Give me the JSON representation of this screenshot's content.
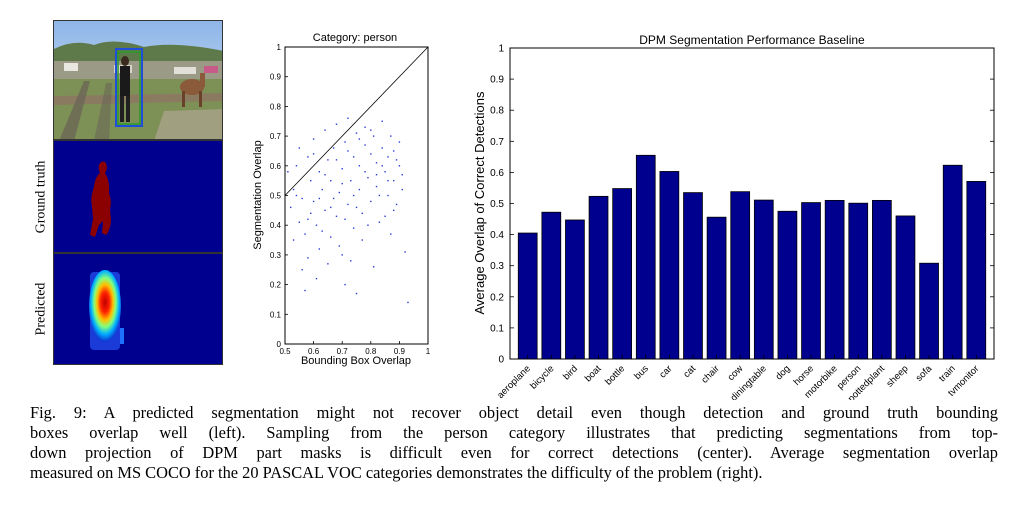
{
  "left_panel": {
    "row_labels": [
      "Ground truth",
      "Predicted"
    ]
  },
  "colors": {
    "bar": "#00008f",
    "bar_edge": "#000000",
    "scatter_point": "#2b3bd6",
    "mask_background": "#00008f",
    "mask_object": "#8b0000"
  },
  "chart_data": [
    {
      "type": "scatter",
      "title": "Category: person",
      "xlabel": "Bounding Box Overlap",
      "ylabel": "Segmentation Overlap",
      "xlim": [
        0.5,
        1
      ],
      "ylim": [
        0,
        1
      ],
      "xticks": [
        "0.5",
        "0.6",
        "0.7",
        "0.8",
        "0.9",
        "1"
      ],
      "yticks": [
        "0",
        "0.1",
        "0.2",
        "0.3",
        "0.4",
        "0.5",
        "0.6",
        "0.7",
        "0.8",
        "0.9",
        "1"
      ],
      "reference_line": {
        "from": [
          0.5,
          0.5
        ],
        "to": [
          1,
          1
        ]
      },
      "points": [
        [
          0.51,
          0.58
        ],
        [
          0.52,
          0.46
        ],
        [
          0.53,
          0.52
        ],
        [
          0.54,
          0.6
        ],
        [
          0.55,
          0.41
        ],
        [
          0.55,
          0.66
        ],
        [
          0.56,
          0.49
        ],
        [
          0.57,
          0.37
        ],
        [
          0.58,
          0.63
        ],
        [
          0.58,
          0.29
        ],
        [
          0.59,
          0.55
        ],
        [
          0.6,
          0.48
        ],
        [
          0.6,
          0.69
        ],
        [
          0.61,
          0.4
        ],
        [
          0.62,
          0.58
        ],
        [
          0.62,
          0.32
        ],
        [
          0.63,
          0.52
        ],
        [
          0.64,
          0.72
        ],
        [
          0.64,
          0.45
        ],
        [
          0.65,
          0.62
        ],
        [
          0.66,
          0.36
        ],
        [
          0.66,
          0.55
        ],
        [
          0.67,
          0.66
        ],
        [
          0.68,
          0.43
        ],
        [
          0.68,
          0.74
        ],
        [
          0.69,
          0.51
        ],
        [
          0.7,
          0.59
        ],
        [
          0.7,
          0.3
        ],
        [
          0.71,
          0.68
        ],
        [
          0.72,
          0.47
        ],
        [
          0.72,
          0.76
        ],
        [
          0.73,
          0.55
        ],
        [
          0.74,
          0.63
        ],
        [
          0.74,
          0.39
        ],
        [
          0.75,
          0.71
        ],
        [
          0.76,
          0.52
        ],
        [
          0.76,
          0.6
        ],
        [
          0.77,
          0.44
        ],
        [
          0.78,
          0.67
        ],
        [
          0.78,
          0.73
        ],
        [
          0.79,
          0.56
        ],
        [
          0.8,
          0.48
        ],
        [
          0.8,
          0.64
        ],
        [
          0.81,
          0.7
        ],
        [
          0.82,
          0.53
        ],
        [
          0.82,
          0.61
        ],
        [
          0.83,
          0.41
        ],
        [
          0.84,
          0.66
        ],
        [
          0.84,
          0.75
        ],
        [
          0.85,
          0.58
        ],
        [
          0.86,
          0.5
        ],
        [
          0.86,
          0.63
        ],
        [
          0.87,
          0.7
        ],
        [
          0.88,
          0.55
        ],
        [
          0.88,
          0.45
        ],
        [
          0.89,
          0.62
        ],
        [
          0.9,
          0.68
        ],
        [
          0.91,
          0.52
        ],
        [
          0.92,
          0.31
        ],
        [
          0.93,
          0.14
        ],
        [
          0.53,
          0.35
        ],
        [
          0.56,
          0.25
        ],
        [
          0.57,
          0.18
        ],
        [
          0.59,
          0.44
        ],
        [
          0.61,
          0.22
        ],
        [
          0.63,
          0.38
        ],
        [
          0.65,
          0.27
        ],
        [
          0.67,
          0.49
        ],
        [
          0.69,
          0.33
        ],
        [
          0.71,
          0.42
        ],
        [
          0.73,
          0.28
        ],
        [
          0.75,
          0.46
        ],
        [
          0.77,
          0.35
        ],
        [
          0.79,
          0.4
        ],
        [
          0.81,
          0.26
        ],
        [
          0.83,
          0.5
        ],
        [
          0.85,
          0.43
        ],
        [
          0.87,
          0.37
        ],
        [
          0.89,
          0.47
        ],
        [
          0.91,
          0.57
        ],
        [
          0.54,
          0.5
        ],
        [
          0.58,
          0.42
        ],
        [
          0.62,
          0.49
        ],
        [
          0.66,
          0.46
        ],
        [
          0.7,
          0.54
        ],
        [
          0.74,
          0.5
        ],
        [
          0.78,
          0.58
        ],
        [
          0.82,
          0.57
        ],
        [
          0.86,
          0.55
        ],
        [
          0.9,
          0.6
        ],
        [
          0.6,
          0.64
        ],
        [
          0.64,
          0.57
        ],
        [
          0.68,
          0.62
        ],
        [
          0.72,
          0.65
        ],
        [
          0.76,
          0.69
        ],
        [
          0.8,
          0.72
        ],
        [
          0.84,
          0.6
        ],
        [
          0.88,
          0.65
        ],
        [
          0.71,
          0.2
        ],
        [
          0.75,
          0.17
        ]
      ]
    },
    {
      "type": "bar",
      "title": "DPM Segmentation Performance Baseline",
      "xlabel": "",
      "ylabel": "Average Overlap of Correct Detections",
      "ylim": [
        0,
        1
      ],
      "yticks": [
        "0",
        "0.1",
        "0.2",
        "0.3",
        "0.4",
        "0.5",
        "0.6",
        "0.7",
        "0.8",
        "0.9",
        "1"
      ],
      "categories": [
        "aeroplane",
        "bicycle",
        "bird",
        "boat",
        "bottle",
        "bus",
        "car",
        "cat",
        "chair",
        "cow",
        "diningtable",
        "dog",
        "horse",
        "motorbike",
        "person",
        "pottedplant",
        "sheep",
        "sofa",
        "train",
        "tvmonitor"
      ],
      "values": [
        0.405,
        0.472,
        0.447,
        0.523,
        0.548,
        0.655,
        0.603,
        0.535,
        0.456,
        0.538,
        0.511,
        0.475,
        0.503,
        0.51,
        0.501,
        0.51,
        0.46,
        0.308,
        0.623,
        0.571
      ]
    }
  ],
  "caption": {
    "lines": [
      "Fig. 9: A predicted segmentation might not recover object detail even though detection and ground truth bounding",
      "boxes overlap well (left). Sampling from the person category illustrates that predicting segmentations from top-",
      "down projection of DPM part masks is difficult even for correct detections (center). Average segmentation overlap",
      "measured on MS COCO for the 20 PASCAL VOC categories demonstrates the difficulty of the problem (right)."
    ]
  }
}
